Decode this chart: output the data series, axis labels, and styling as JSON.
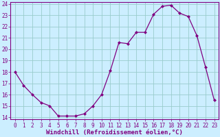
{
  "x": [
    0,
    1,
    2,
    3,
    4,
    5,
    6,
    7,
    8,
    9,
    10,
    11,
    12,
    13,
    14,
    15,
    16,
    17,
    18,
    19,
    20,
    21,
    22,
    23
  ],
  "y": [
    18,
    16.8,
    16,
    15.3,
    15,
    14.1,
    14.1,
    14.1,
    14.3,
    15,
    16,
    18.1,
    20.6,
    20.5,
    21.5,
    21.5,
    23.1,
    23.8,
    23.9,
    23.2,
    22.9,
    21.2,
    18.4,
    15.5
  ],
  "xlim": [
    -0.5,
    23.5
  ],
  "ylim": [
    13.8,
    24.2
  ],
  "yticks": [
    14,
    15,
    16,
    17,
    18,
    19,
    20,
    21,
    22,
    23,
    24
  ],
  "xticks": [
    0,
    1,
    2,
    3,
    4,
    5,
    6,
    7,
    8,
    9,
    10,
    11,
    12,
    13,
    14,
    15,
    16,
    17,
    18,
    19,
    20,
    21,
    22,
    23
  ],
  "xlabel": "Windchill (Refroidissement éolien,°C)",
  "line_color": "#800080",
  "marker": "D",
  "marker_size": 2.0,
  "bg_color": "#cceeff",
  "grid_color": "#99cccc",
  "border_color": "#800080",
  "xlabel_color": "#800080",
  "tick_color": "#800080",
  "tick_label_color": "#800080",
  "tick_fontsize": 5.5,
  "ylabel_fontsize": 5.5,
  "xlabel_fontsize": 6.5
}
